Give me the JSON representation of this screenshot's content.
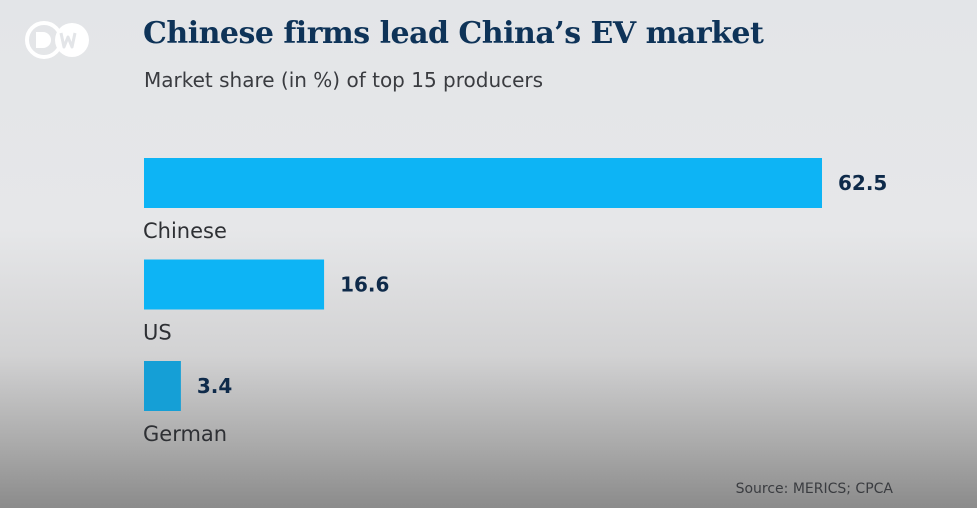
{
  "logo": {
    "text": "DW"
  },
  "chart_data": {
    "type": "bar",
    "orientation": "horizontal",
    "title": "Chinese firms lead China’s EV market",
    "subtitle": "Market share (in %) of top 15 producers",
    "categories": [
      "Chinese",
      "US",
      "German"
    ],
    "values": [
      62.5,
      16.6,
      3.4
    ],
    "value_labels": [
      "62.5",
      "16.6",
      "3.4"
    ],
    "xlabel": "",
    "ylabel": "",
    "xlim": [
      0,
      62.5
    ],
    "grid": false,
    "colors": [
      "#0db4f5",
      "#0db4f5",
      "#159fd6"
    ],
    "source": "Source: MERICS; CPCA"
  }
}
